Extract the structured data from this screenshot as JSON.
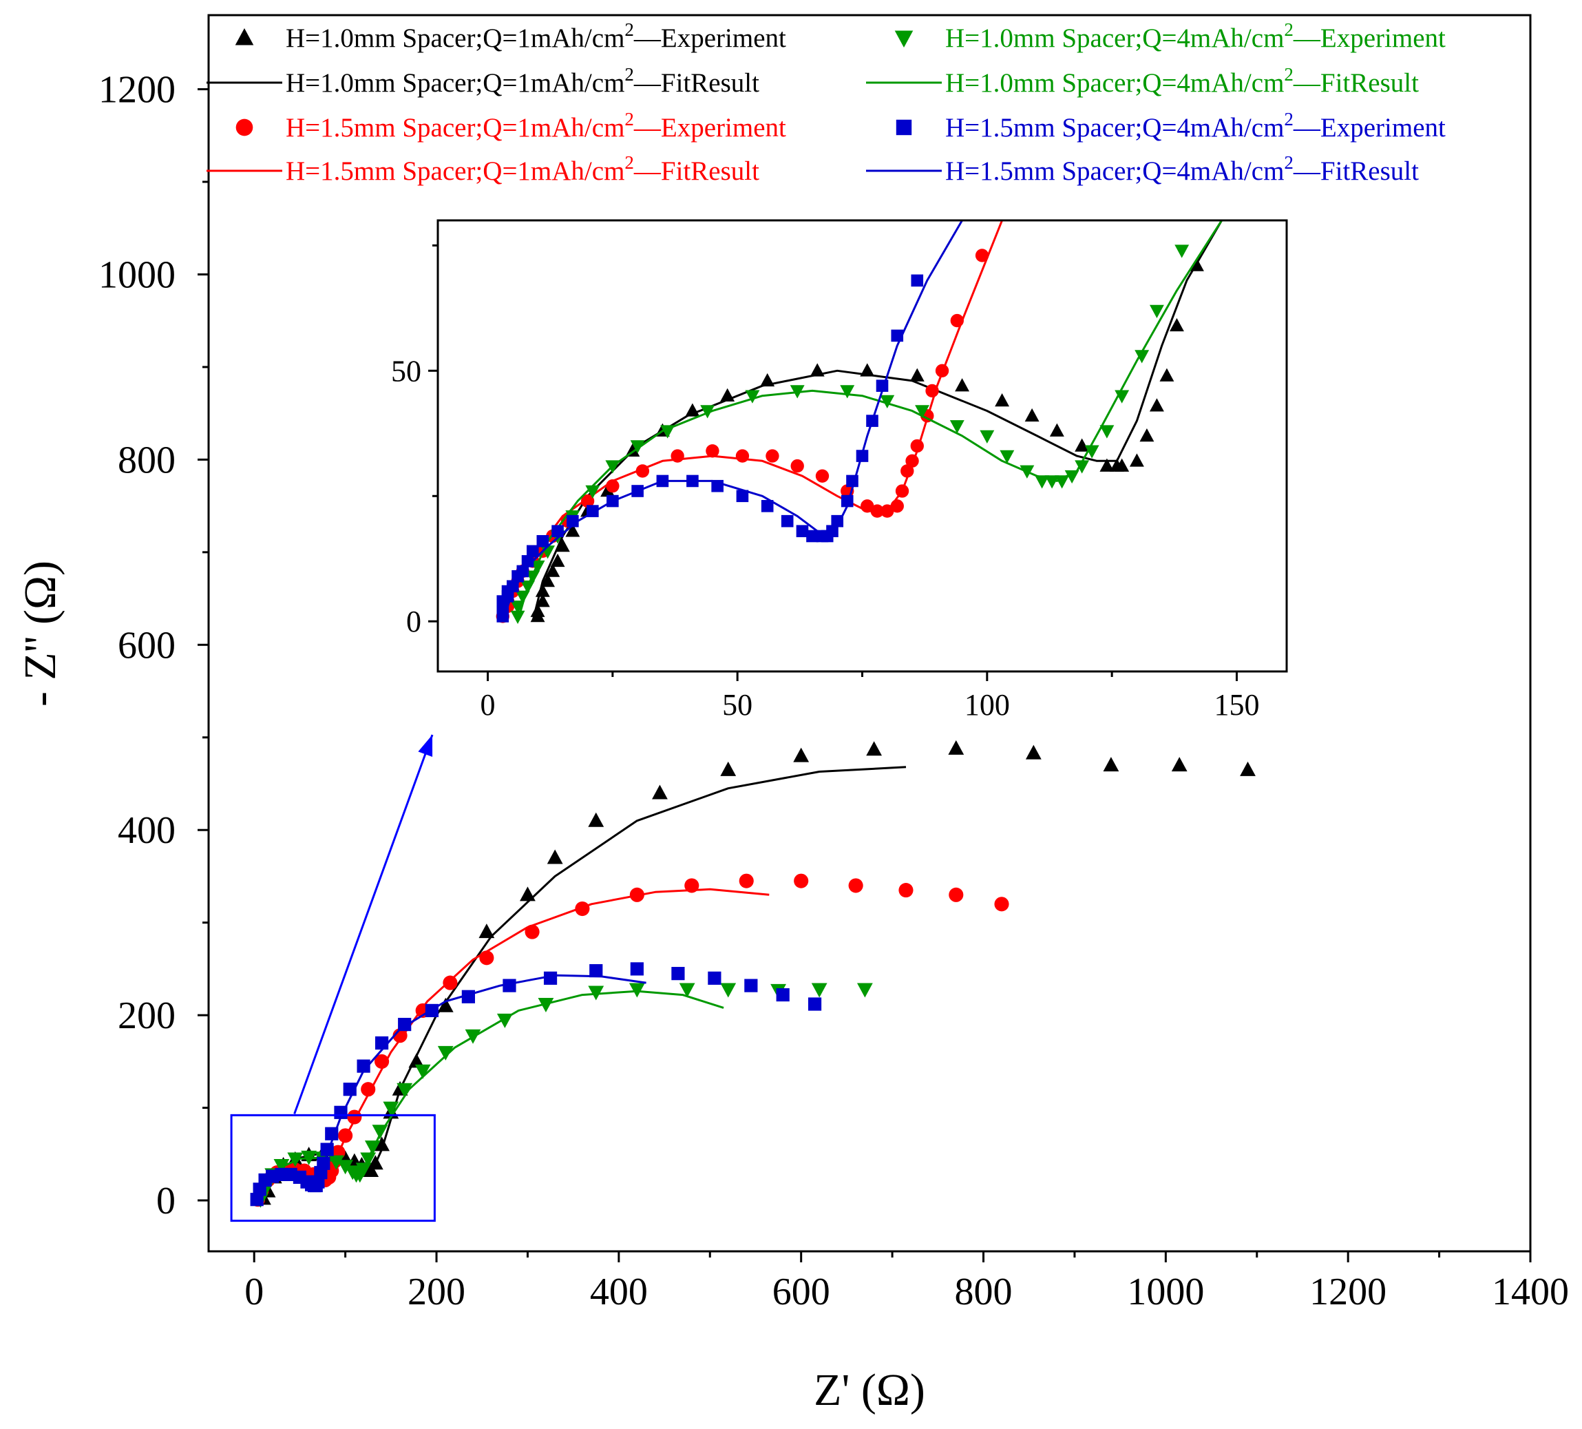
{
  "chart_data": {
    "type": "scatter",
    "xlabel": "Z' (Ω)",
    "ylabel": "- Z'' (Ω)",
    "xlim": [
      -50,
      1400
    ],
    "ylim": [
      -55,
      1280
    ],
    "xticks": [
      0,
      200,
      400,
      600,
      800,
      1000,
      1200,
      1400
    ],
    "yticks": [
      0,
      200,
      400,
      600,
      800,
      1000,
      1200
    ],
    "legend_position": "top",
    "series": [
      {
        "name": "H=1.0mm Spacer;Q=1mAh/cm²—Experiment",
        "legend_prefix": "H=1.0mm Spacer;Q=1mAh/cm",
        "legend_sup": "2",
        "legend_suffix": "—Experiment",
        "kind": "scatter",
        "marker": "triangle-up",
        "color": "#000000",
        "x": [
          10,
          15,
          22,
          32,
          45,
          60,
          75,
          88,
          100,
          110,
          118,
          124,
          128,
          133,
          140,
          150,
          160,
          178,
          210,
          255,
          300,
          330,
          375,
          445,
          520,
          600,
          680,
          770,
          855,
          940,
          1015,
          1090
        ],
        "y": [
          2,
          10,
          25,
          38,
          44,
          49,
          50,
          49,
          45,
          42,
          38,
          32,
          32,
          40,
          60,
          95,
          120,
          150,
          210,
          290,
          330,
          370,
          410,
          440,
          465,
          480,
          487,
          488,
          483,
          470,
          470,
          465
        ]
      },
      {
        "name": "H=1.0mm Spacer;Q=1mAh/cm²—FitResult",
        "legend_prefix": "H=1.0mm Spacer;Q=1mAh/cm",
        "legend_sup": "2",
        "legend_suffix": "—FitResult",
        "kind": "line",
        "color": "#000000",
        "x": [
          10,
          20,
          35,
          50,
          70,
          90,
          105,
          115,
          124,
          130,
          140,
          160,
          200,
          260,
          330,
          420,
          520,
          620,
          715
        ],
        "y": [
          0,
          20,
          38,
          46,
          50,
          48,
          43,
          37,
          31,
          33,
          55,
          120,
          200,
          285,
          350,
          410,
          445,
          463,
          468
        ]
      },
      {
        "name": "H=1.5mm Spacer;Q=1mAh/cm²—Experiment",
        "legend_prefix": "H=1.5mm Spacer;Q=1mAh/cm",
        "legend_sup": "2",
        "legend_suffix": "—Experiment",
        "kind": "scatter",
        "marker": "circle",
        "color": "#ff0000",
        "x": [
          4,
          8,
          15,
          25,
          35,
          45,
          55,
          65,
          72,
          78,
          82,
          85,
          88,
          92,
          100,
          110,
          125,
          140,
          160,
          185,
          215,
          255,
          305,
          360,
          420,
          480,
          540,
          600,
          660,
          715,
          770,
          820
        ],
        "y": [
          1,
          10,
          22,
          30,
          33,
          33,
          32,
          28,
          24,
          22,
          25,
          32,
          42,
          52,
          70,
          90,
          120,
          150,
          178,
          205,
          235,
          262,
          290,
          315,
          330,
          340,
          345,
          345,
          340,
          335,
          330,
          320
        ]
      },
      {
        "name": "H=1.5mm Spacer;Q=1mAh/cm²—FitResult",
        "legend_prefix": "H=1.5mm Spacer;Q=1mAh/cm",
        "legend_sup": "2",
        "legend_suffix": "—FitResult",
        "kind": "line",
        "color": "#ff0000",
        "x": [
          4,
          10,
          20,
          35,
          50,
          65,
          75,
          80,
          85,
          90,
          100,
          120,
          150,
          190,
          240,
          300,
          370,
          440,
          500,
          565
        ],
        "y": [
          0,
          15,
          28,
          33,
          32,
          28,
          24,
          22,
          28,
          45,
          68,
          105,
          160,
          215,
          260,
          295,
          320,
          333,
          336,
          330
        ]
      },
      {
        "name": "H=1.0mm Spacer;Q=4mAh/cm²—Experiment",
        "legend_prefix": "H=1.0mm Spacer;Q=4mAh/cm",
        "legend_sup": "2",
        "legend_suffix": "—Experiment",
        "kind": "scatter",
        "marker": "triangle-down",
        "color": "#009900",
        "x": [
          7,
          12,
          20,
          30,
          45,
          60,
          75,
          90,
          100,
          108,
          112,
          116,
          120,
          125,
          130,
          138,
          150,
          165,
          185,
          210,
          240,
          275,
          320,
          375,
          420,
          475,
          520,
          575,
          620,
          670
        ],
        "y": [
          1,
          12,
          28,
          38,
          45,
          47,
          46,
          42,
          37,
          31,
          28,
          28,
          34,
          45,
          58,
          75,
          100,
          120,
          140,
          160,
          178,
          195,
          212,
          225,
          228,
          228,
          228,
          227,
          228,
          228
        ]
      },
      {
        "name": "H=1.0mm Spacer;Q=4mAh/cm²—FitResult",
        "legend_prefix": "H=1.0mm Spacer;Q=4mAh/cm",
        "legend_sup": "2",
        "legend_suffix": "—FitResult",
        "kind": "line",
        "color": "#009900",
        "x": [
          7,
          15,
          30,
          50,
          70,
          90,
          105,
          113,
          118,
          125,
          140,
          170,
          220,
          290,
          360,
          420,
          470,
          515
        ],
        "y": [
          0,
          18,
          36,
          45,
          46,
          42,
          34,
          30,
          32,
          45,
          75,
          120,
          165,
          205,
          222,
          226,
          222,
          208
        ]
      },
      {
        "name": "H=1.5mm Spacer;Q=4mAh/cm²—Experiment",
        "legend_prefix": "H=1.5mm Spacer;Q=4mAh/cm",
        "legend_sup": "2",
        "legend_suffix": "—Experiment",
        "kind": "scatter",
        "marker": "square",
        "color": "#0000cc",
        "x": [
          3,
          6,
          12,
          20,
          30,
          40,
          50,
          58,
          63,
          66,
          68,
          70,
          73,
          76,
          80,
          85,
          95,
          105,
          120,
          140,
          165,
          195,
          235,
          280,
          325,
          375,
          420,
          465,
          505,
          545,
          580,
          615
        ],
        "y": [
          1,
          12,
          22,
          26,
          28,
          28,
          25,
          20,
          17,
          16,
          16,
          20,
          30,
          40,
          55,
          72,
          95,
          120,
          145,
          170,
          190,
          205,
          220,
          232,
          240,
          248,
          250,
          245,
          240,
          232,
          222,
          212
        ]
      },
      {
        "name": "H=1.5mm Spacer;Q=4mAh/cm²—FitResult",
        "legend_prefix": "H=1.5mm Spacer;Q=4mAh/cm",
        "legend_sup": "2",
        "legend_suffix": "—FitResult",
        "kind": "line",
        "color": "#0000cc",
        "x": [
          3,
          8,
          20,
          35,
          50,
          62,
          68,
          72,
          80,
          95,
          120,
          160,
          210,
          270,
          330,
          380,
          430
        ],
        "y": [
          0,
          14,
          26,
          28,
          25,
          20,
          17,
          20,
          50,
          90,
          140,
          185,
          215,
          232,
          243,
          242,
          235
        ]
      }
    ],
    "inset": {
      "xlim": [
        -10,
        160
      ],
      "ylim": [
        -10,
        80
      ],
      "xticks": [
        0,
        50,
        100,
        150
      ],
      "yticks": [
        0,
        50
      ],
      "zoom_box": {
        "x": [
          -25,
          198
        ],
        "y": [
          -22,
          92
        ]
      },
      "series": [
        {
          "kind": "scatter",
          "marker": "triangle-up",
          "color": "#000000",
          "x": [
            10,
            10,
            11,
            11,
            12,
            13,
            14,
            15,
            17,
            20,
            24,
            29,
            35,
            41,
            48,
            56,
            66,
            76,
            86,
            95,
            103,
            109,
            114,
            119,
            124,
            126,
            127,
            130,
            132,
            134,
            136,
            138,
            142
          ],
          "y": [
            1,
            2,
            4,
            6,
            8,
            10,
            12,
            15,
            18,
            22,
            26,
            34,
            38,
            42,
            45,
            48,
            50,
            50,
            49,
            47,
            44,
            41,
            38,
            35,
            31,
            31,
            31,
            32,
            37,
            43,
            49,
            59,
            71
          ]
        },
        {
          "kind": "line",
          "color": "#000000",
          "x": [
            9,
            11,
            15,
            20,
            30,
            40,
            55,
            70,
            85,
            100,
            110,
            118,
            122,
            126,
            130,
            135,
            140,
            147
          ],
          "y": [
            0,
            8,
            17,
            25,
            35,
            41,
            47,
            50,
            48,
            42,
            37,
            33,
            32,
            32,
            40,
            55,
            68,
            80
          ]
        },
        {
          "kind": "scatter",
          "marker": "circle",
          "color": "#ff0000",
          "x": [
            3,
            4,
            4,
            5,
            6,
            7,
            9,
            11,
            13,
            16,
            20,
            25,
            31,
            38,
            45,
            51,
            57,
            62,
            67,
            72,
            76,
            78,
            80,
            82,
            83,
            84,
            85,
            86,
            88,
            89,
            91,
            94,
            99
          ],
          "y": [
            1,
            3,
            4,
            6,
            8,
            10,
            12,
            14,
            17,
            20,
            24,
            27,
            30,
            33,
            34,
            33,
            33,
            31,
            29,
            26,
            23,
            22,
            22,
            23,
            26,
            30,
            32,
            35,
            41,
            46,
            50,
            60,
            73
          ]
        },
        {
          "kind": "line",
          "color": "#ff0000",
          "x": [
            3,
            5,
            9,
            15,
            25,
            35,
            45,
            55,
            63,
            70,
            76,
            80,
            83,
            86,
            90,
            95,
            103
          ],
          "y": [
            0,
            6,
            13,
            21,
            28,
            32,
            33,
            32,
            29,
            25,
            22,
            22,
            26,
            34,
            47,
            60,
            80
          ]
        },
        {
          "kind": "scatter",
          "marker": "triangle-down",
          "color": "#009900",
          "x": [
            6,
            6,
            7,
            8,
            9,
            10,
            12,
            14,
            17,
            21,
            25,
            30,
            36,
            44,
            53,
            62,
            72,
            80,
            87,
            94,
            100,
            104,
            108,
            111,
            113,
            115,
            117,
            119,
            121,
            124,
            127,
            131,
            134,
            139
          ],
          "y": [
            1,
            3,
            5,
            7,
            9,
            11,
            14,
            17,
            21,
            26,
            31,
            35,
            38,
            42,
            45,
            46,
            46,
            44,
            42,
            39,
            37,
            33,
            30,
            28,
            28,
            28,
            29,
            31,
            34,
            38,
            45,
            53,
            62,
            74
          ]
        },
        {
          "kind": "line",
          "color": "#009900",
          "x": [
            6,
            8,
            12,
            18,
            25,
            35,
            45,
            55,
            65,
            75,
            85,
            95,
            103,
            110,
            114,
            118,
            123,
            130,
            138,
            147
          ],
          "y": [
            0,
            7,
            16,
            24,
            31,
            38,
            42,
            45,
            46,
            45,
            42,
            37,
            32,
            29,
            28,
            30,
            39,
            52,
            66,
            80
          ]
        },
        {
          "kind": "scatter",
          "marker": "square",
          "color": "#0000cc",
          "x": [
            3,
            3,
            3,
            4,
            4,
            5,
            6,
            7,
            8,
            9,
            11,
            14,
            17,
            21,
            25,
            30,
            35,
            41,
            46,
            51,
            56,
            60,
            63,
            65,
            67,
            68,
            69,
            70,
            72,
            73,
            75,
            77,
            79,
            82,
            86
          ],
          "y": [
            1,
            2,
            4,
            5,
            6,
            7,
            9,
            10,
            12,
            14,
            16,
            18,
            20,
            22,
            24,
            26,
            28,
            28,
            27,
            25,
            23,
            20,
            18,
            17,
            17,
            17,
            18,
            20,
            24,
            28,
            33,
            40,
            47,
            57,
            68
          ]
        },
        {
          "kind": "line",
          "color": "#0000cc",
          "x": [
            3,
            5,
            8,
            12,
            18,
            25,
            35,
            45,
            55,
            62,
            66,
            69,
            72,
            76,
            82,
            88,
            95
          ],
          "y": [
            0,
            6,
            11,
            15,
            20,
            24,
            28,
            28,
            25,
            21,
            18,
            17,
            23,
            37,
            55,
            68,
            80
          ]
        }
      ]
    }
  }
}
